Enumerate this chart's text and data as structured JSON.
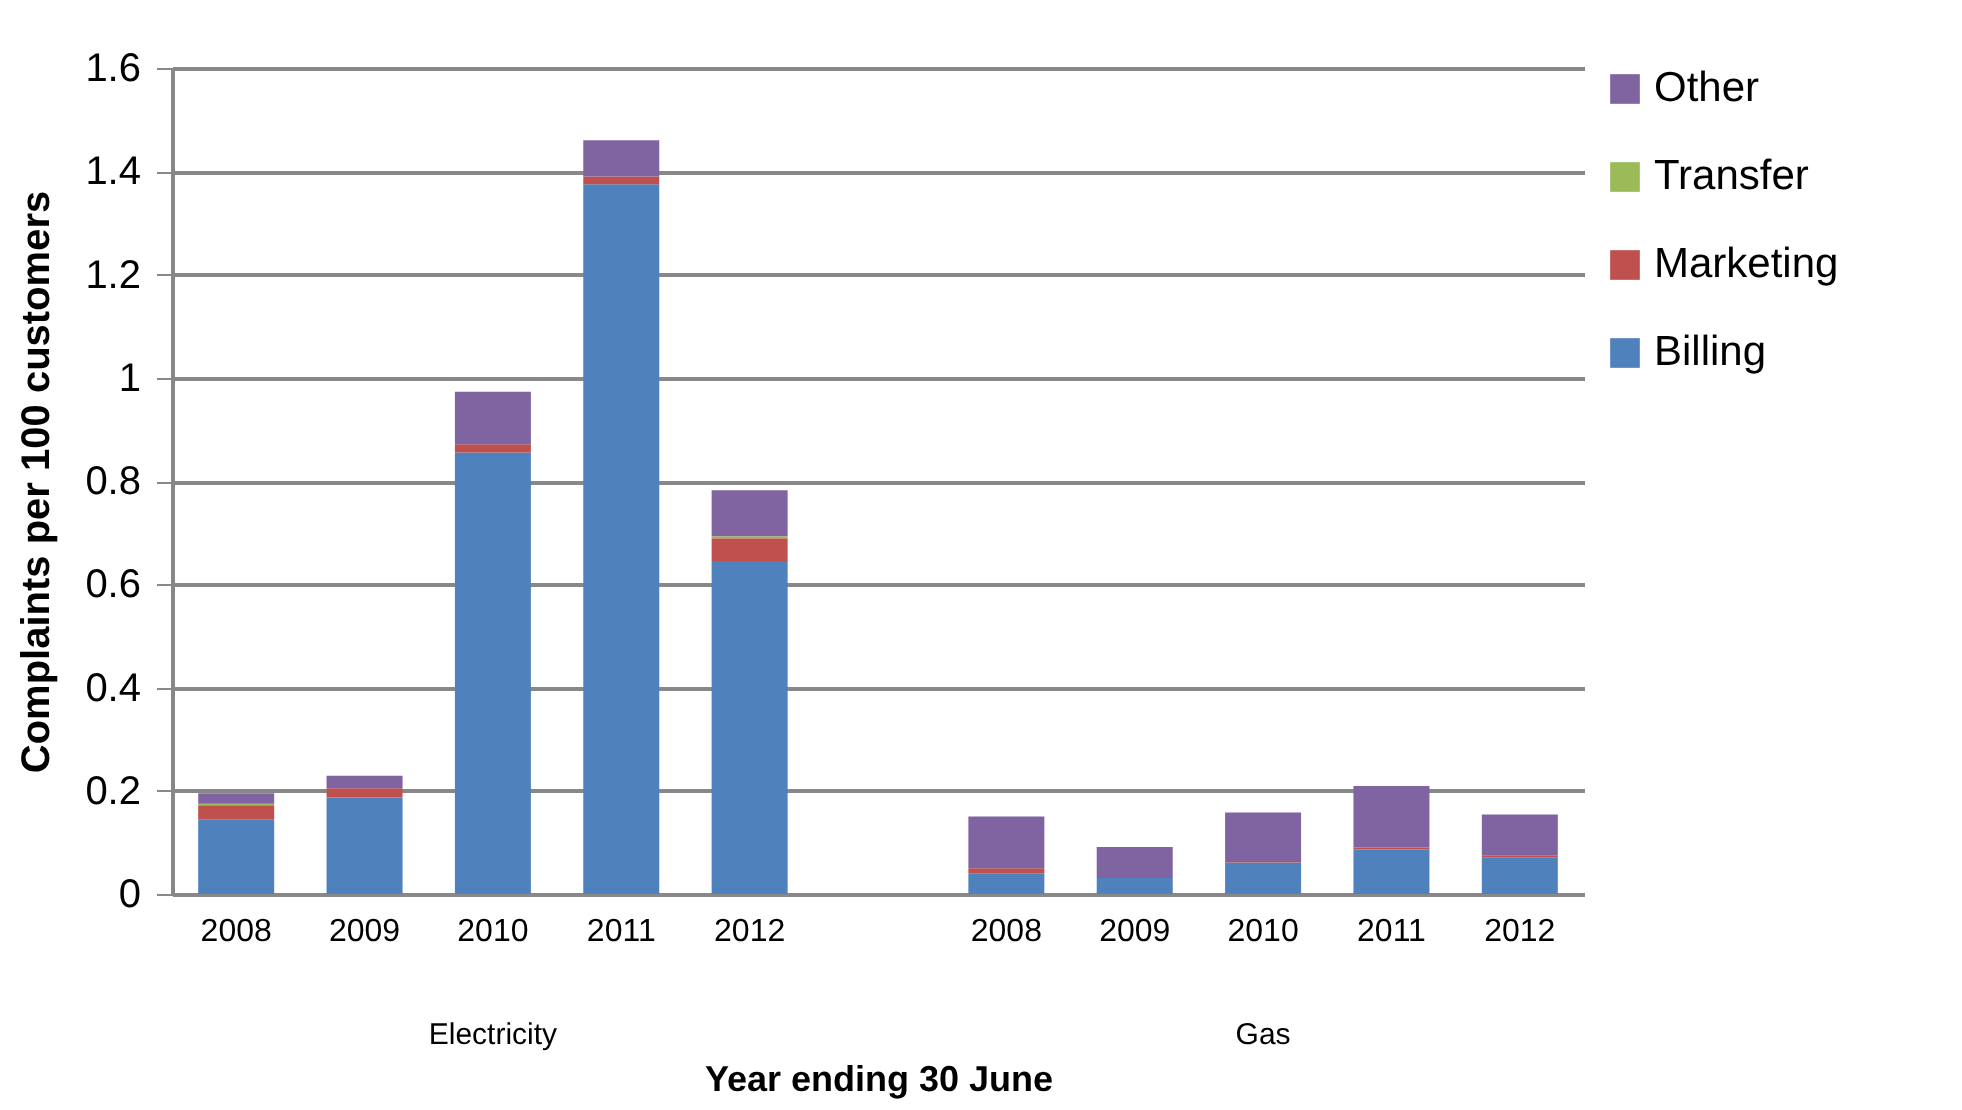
{
  "chart_data": {
    "type": "bar",
    "stacked": true,
    "xlabel": "Year ending 30 June",
    "ylabel": "Complaints per 100 customers",
    "categories": [
      "2008",
      "2009",
      "2010",
      "2011",
      "2012",
      null,
      "2008",
      "2009",
      "2010",
      "2011",
      "2012"
    ],
    "series": [
      {
        "name": "Billing",
        "color": "#4f81bd",
        "values": [
          0.145,
          0.187,
          0.855,
          1.375,
          0.645,
          null,
          0.04,
          0.031,
          0.061,
          0.086,
          0.071
        ]
      },
      {
        "name": "Marketing",
        "color": "#c0504d",
        "values": [
          0.027,
          0.018,
          0.016,
          0.015,
          0.044,
          null,
          0.01,
          0.002,
          0.003,
          0.004,
          0.004
        ]
      },
      {
        "name": "Transfer",
        "color": "#9bbb59",
        "values": [
          0.003,
          0,
          0,
          0,
          0.004,
          null,
          0,
          0,
          0,
          0,
          0
        ]
      },
      {
        "name": "Other",
        "color": "#8064a2",
        "values": [
          0.02,
          0.024,
          0.102,
          0.07,
          0.089,
          null,
          0.1,
          0.058,
          0.094,
          0.119,
          0.079
        ]
      }
    ],
    "ylim": [
      0,
      1.6
    ],
    "yticks": [
      0,
      0.2,
      0.4,
      0.6,
      0.8,
      1,
      1.2,
      1.4,
      1.6
    ],
    "grid": "y",
    "legend": "right",
    "annotations": [
      "Electricity",
      "Gas"
    ]
  }
}
